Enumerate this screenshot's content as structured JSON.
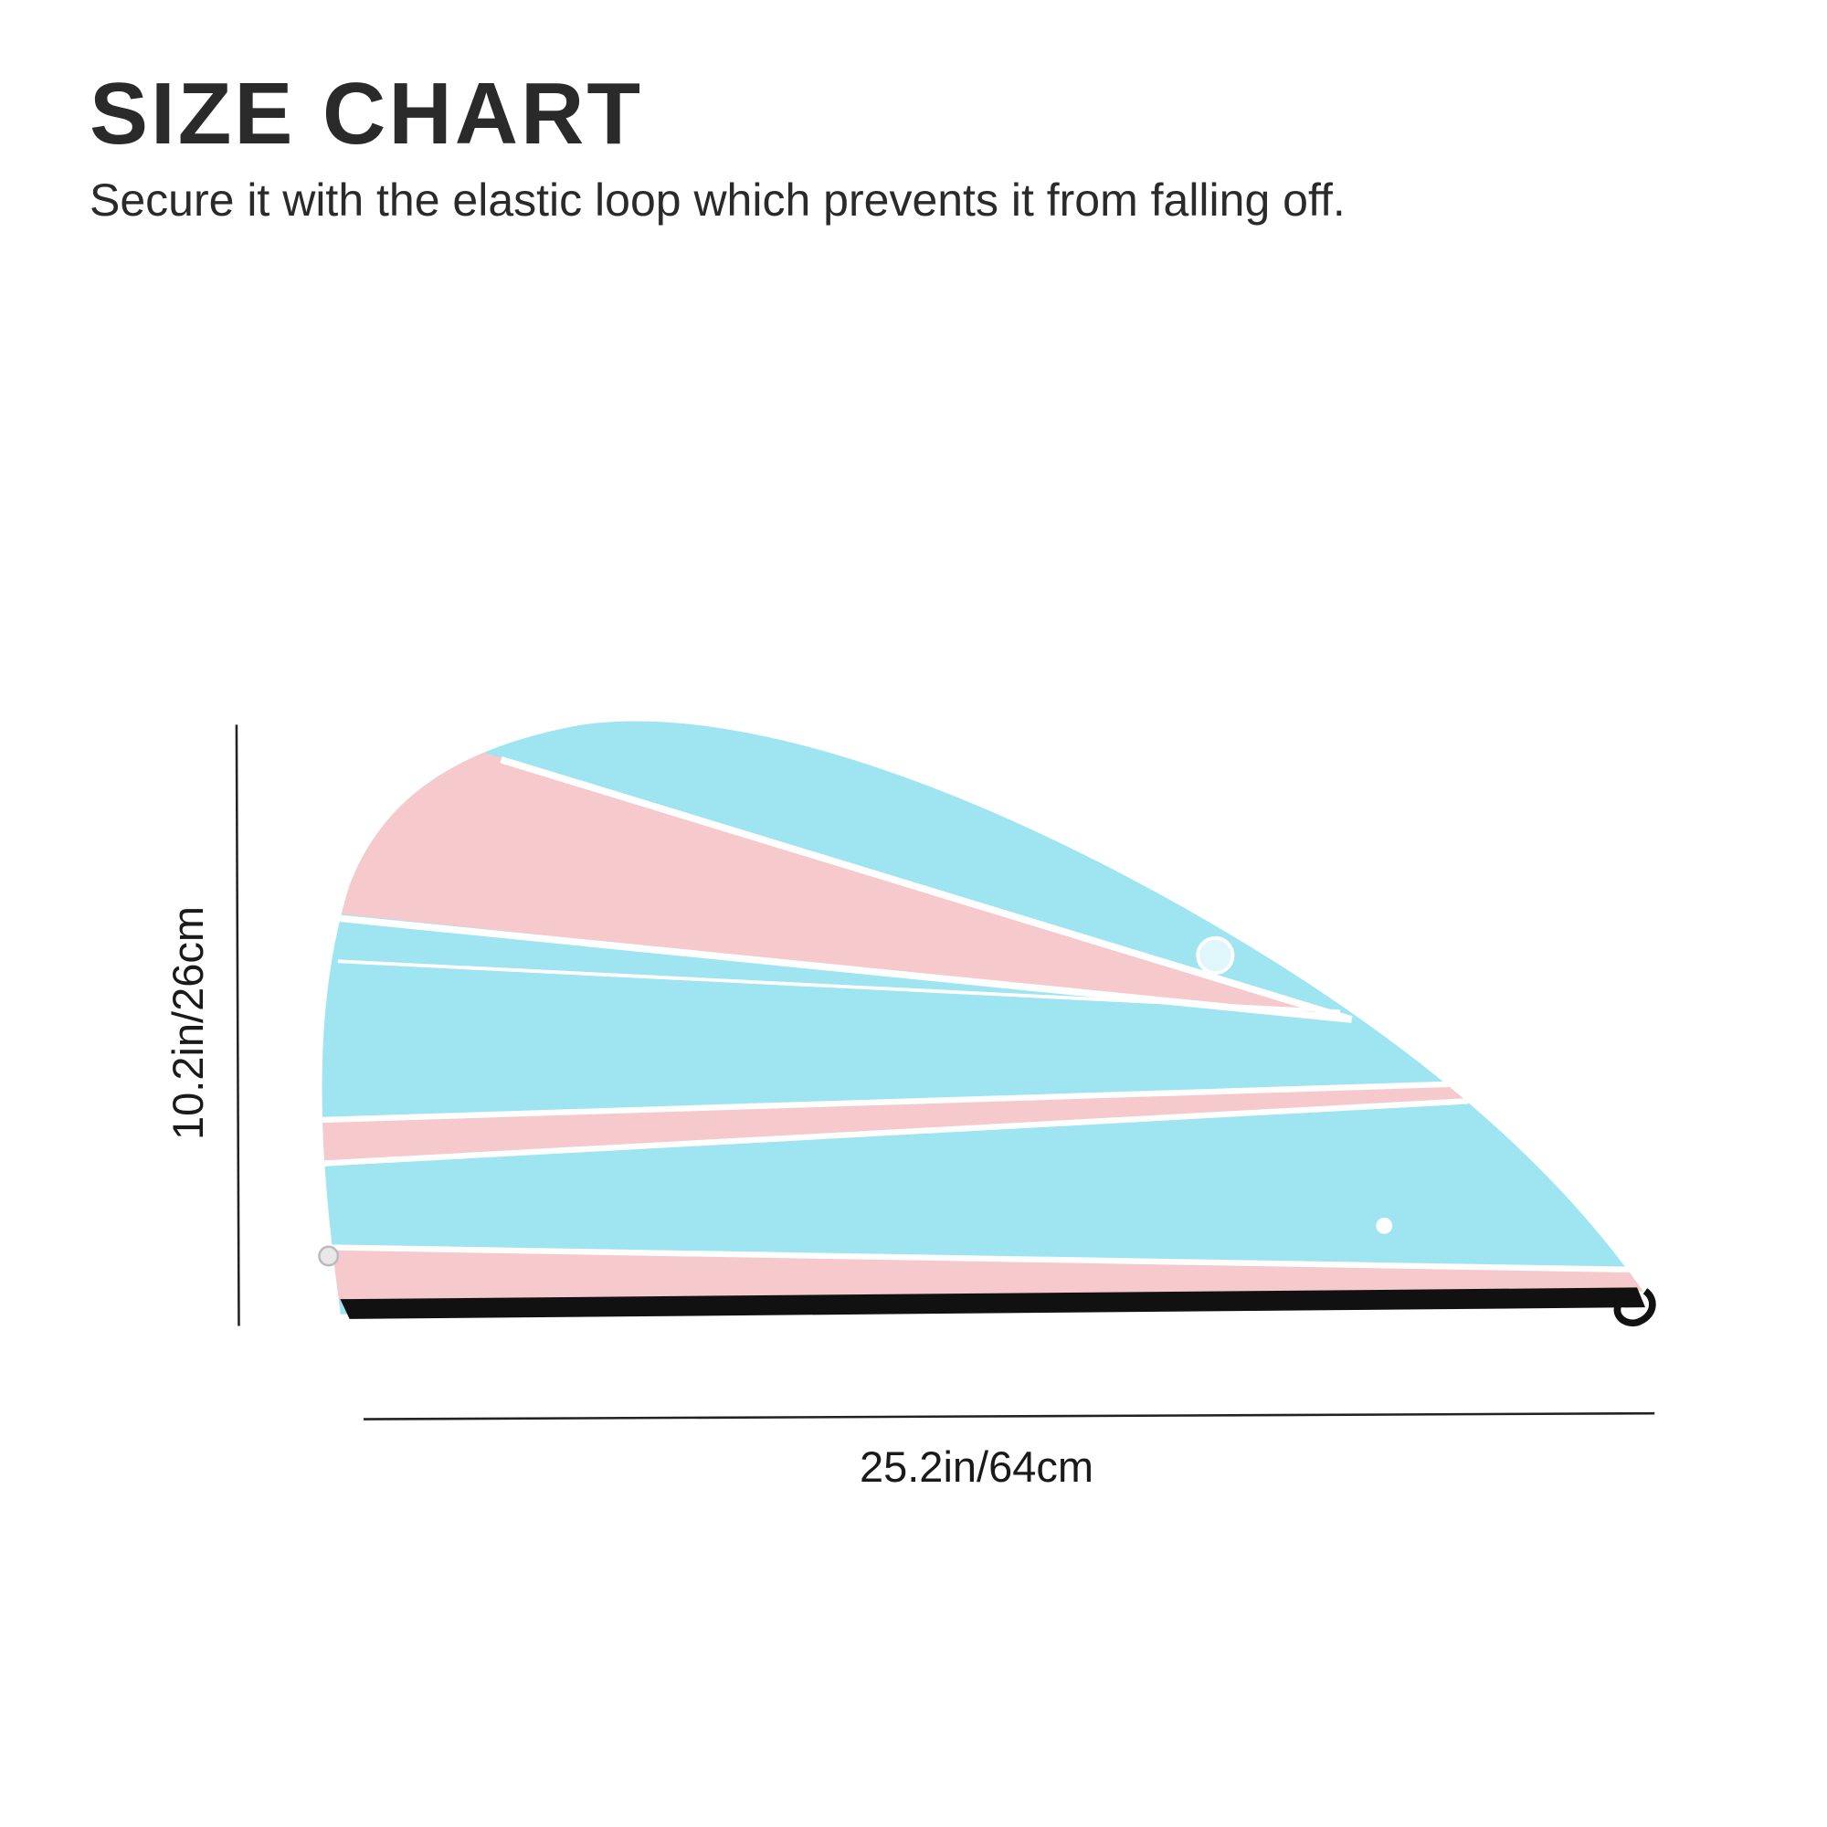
{
  "header": {
    "title": "SIZE CHART",
    "subtitle": "Secure it with the elastic loop which prevents it from falling off."
  },
  "dimensions": {
    "height": "10.2in/26cm",
    "width": "25.2in/64cm"
  }
}
